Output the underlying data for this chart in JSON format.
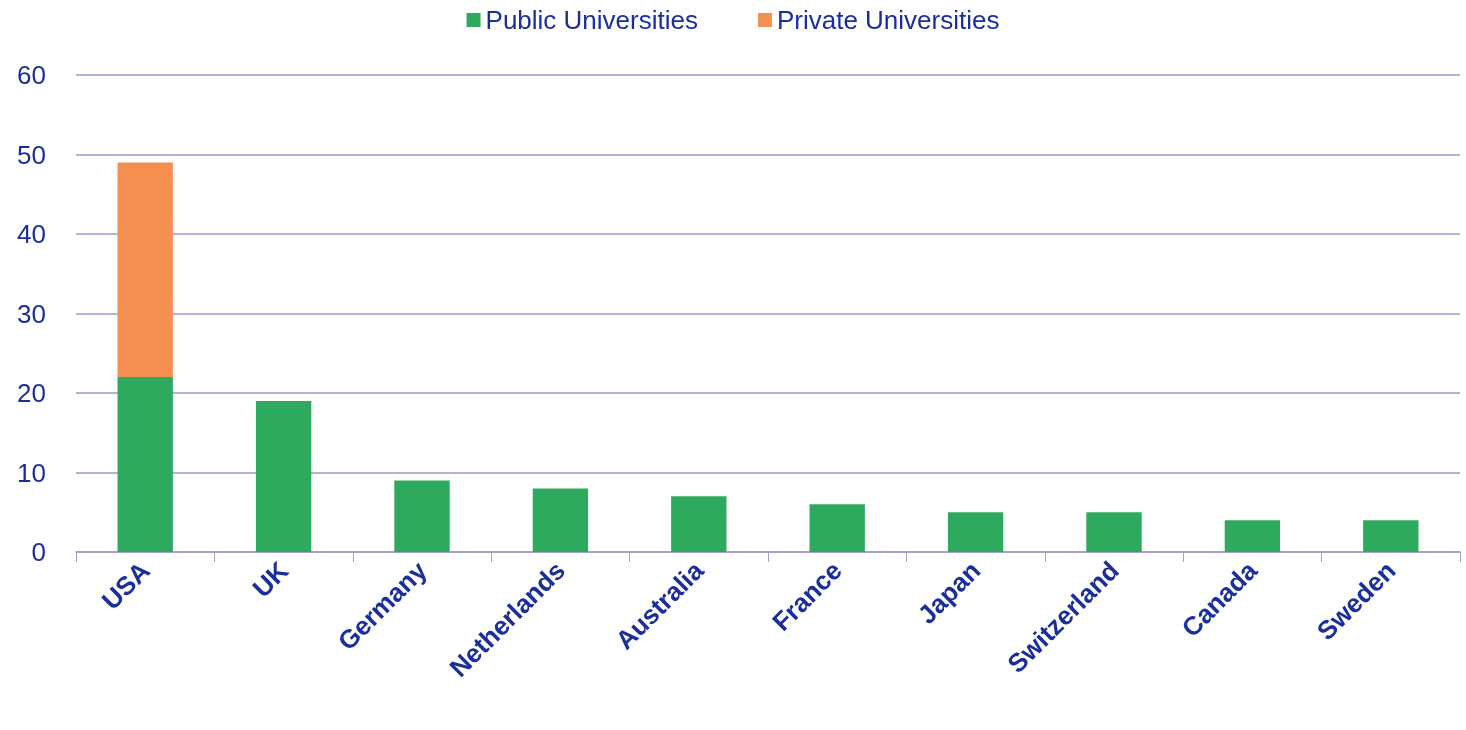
{
  "chart_data": {
    "type": "bar",
    "stacked": true,
    "categories": [
      "USA",
      "UK",
      "Germany",
      "Netherlands",
      "Australia",
      "France",
      "Japan",
      "Switzerland",
      "Canada",
      "Sweden"
    ],
    "series": [
      {
        "name": "Public Universities",
        "color": "#2eaa5f",
        "values": [
          22,
          19,
          9,
          8,
          7,
          6,
          5,
          5,
          4,
          4
        ]
      },
      {
        "name": "Private Universities",
        "color": "#f58f52",
        "values": [
          27,
          null,
          null,
          null,
          null,
          null,
          null,
          null,
          null,
          null
        ]
      }
    ],
    "ylim": [
      0,
      60
    ],
    "yticks": [
      0,
      10,
      20,
      30,
      40,
      50,
      60
    ],
    "grid": "y",
    "legend": "top"
  }
}
